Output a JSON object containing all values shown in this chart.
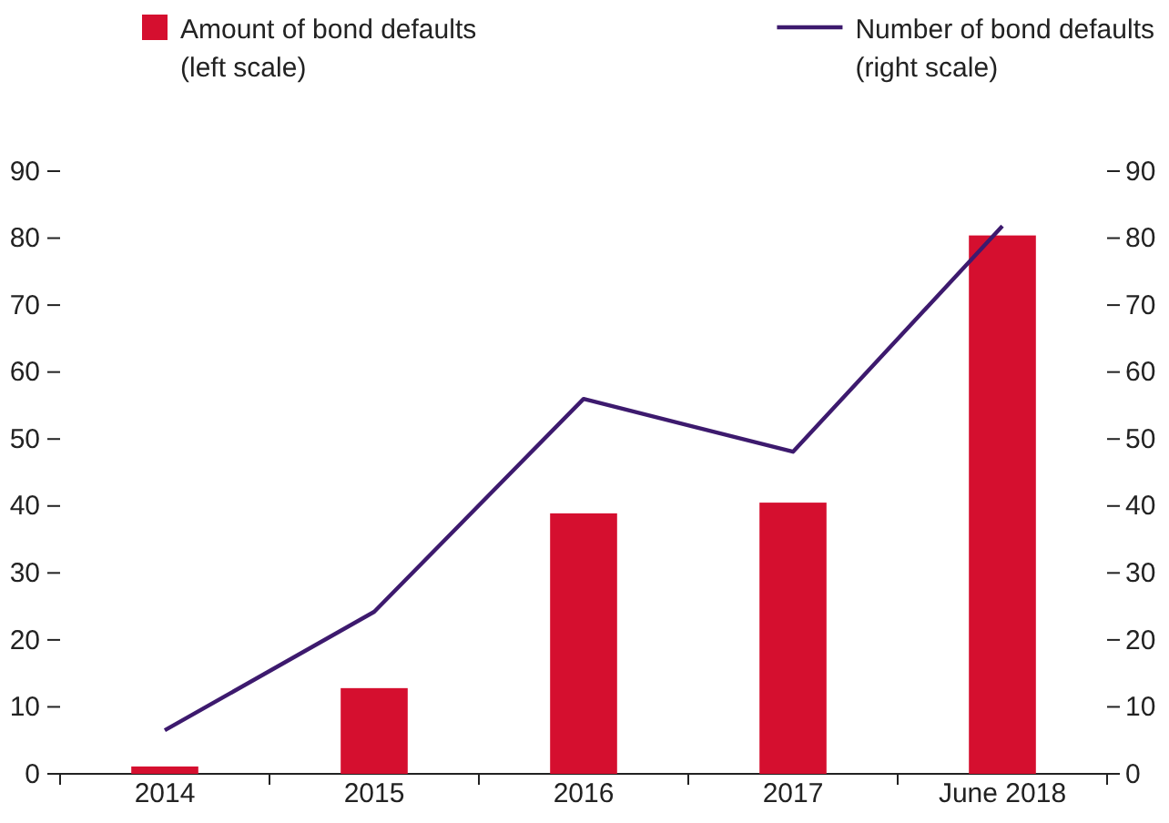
{
  "chart_data": {
    "type": "bar",
    "categories": [
      "2014",
      "2015",
      "2016",
      "2017",
      "June 2018"
    ],
    "series": [
      {
        "name": "Amount of bond defaults\n(left scale)",
        "color": "#d50f2f",
        "values": [
          1.1,
          12.8,
          38.9,
          40.5,
          80.4
        ]
      },
      {
        "name": "Number of bond defaults\n(right scale)",
        "type": "line",
        "axis": "y2",
        "color": "#3d1a6e",
        "values": [
          6.5,
          24.2,
          56,
          48.1,
          81.8
        ]
      }
    ],
    "ylim": [
      0,
      90
    ],
    "yticks": [
      0,
      10,
      20,
      30,
      40,
      50,
      60,
      70,
      80,
      90
    ],
    "y2lim": [
      0,
      90
    ],
    "y2ticks": [
      0,
      10,
      20,
      30,
      40,
      50,
      60,
      70,
      80,
      90
    ],
    "legend": "top",
    "grid": false
  }
}
